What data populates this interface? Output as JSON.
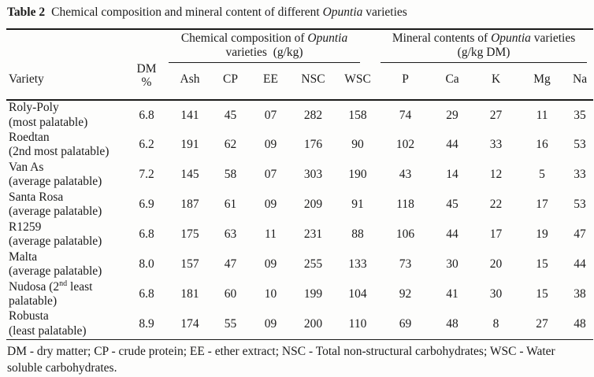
{
  "title": {
    "label": "Table 2",
    "pre": "Chemical composition and mineral content of different ",
    "italic": "Opuntia",
    "post": " varieties"
  },
  "table": {
    "variety_header": "Variety",
    "dm_header_line1": "DM",
    "dm_header_line2": "%",
    "group1": {
      "pre": "Chemical composition of ",
      "italic": "Opuntia",
      "post": "",
      "line2": "varieties  (g/kg)",
      "cols": [
        "Ash",
        "CP",
        "EE",
        "NSC",
        "WSC"
      ]
    },
    "group2": {
      "pre": "Mineral contents of ",
      "italic": "Opuntia",
      "post": " varieties",
      "line2": "(g/kg DM)",
      "cols": [
        "P",
        "Ca",
        "K",
        "Mg",
        "Na"
      ]
    },
    "rows": [
      {
        "l1_pre": "Roly-Poly",
        "l1_sup": "",
        "l1_post": "",
        "l2": "(most palatable)",
        "values": [
          "6.8",
          "141",
          "45",
          "07",
          "282",
          "158",
          "74",
          "29",
          "27",
          "11",
          "35"
        ]
      },
      {
        "l1_pre": "Roedtan",
        "l1_sup": "",
        "l1_post": "",
        "l2": "(2nd most palatable)",
        "values": [
          "6.2",
          "191",
          "62",
          "09",
          "176",
          "90",
          "102",
          "44",
          "33",
          "16",
          "53"
        ]
      },
      {
        "l1_pre": "Van As",
        "l1_sup": "",
        "l1_post": "",
        "l2": "(average palatable)",
        "values": [
          "7.2",
          "145",
          "58",
          "07",
          "303",
          "190",
          "43",
          "14",
          "12",
          "5",
          "33"
        ]
      },
      {
        "l1_pre": "Santa Rosa",
        "l1_sup": "",
        "l1_post": "",
        "l2": "(average palatable)",
        "values": [
          "6.9",
          "187",
          "61",
          "09",
          "209",
          "91",
          "118",
          "45",
          "22",
          "17",
          "53"
        ]
      },
      {
        "l1_pre": "R1259",
        "l1_sup": "",
        "l1_post": "",
        "l2": "(average palatable)",
        "values": [
          "6.8",
          "175",
          "63",
          "11",
          "231",
          "88",
          "106",
          "44",
          "17",
          "19",
          "47"
        ]
      },
      {
        "l1_pre": "Malta",
        "l1_sup": "",
        "l1_post": "",
        "l2": "(average palatable)",
        "values": [
          "8.0",
          "157",
          "47",
          "09",
          "255",
          "133",
          "73",
          "30",
          "20",
          "15",
          "44"
        ]
      },
      {
        "l1_pre": "Nudosa (2",
        "l1_sup": "nd",
        "l1_post": " least",
        "l2": "palatable)",
        "values": [
          "6.8",
          "181",
          "60",
          "10",
          "199",
          "104",
          "92",
          "41",
          "30",
          "15",
          "38"
        ]
      },
      {
        "l1_pre": "Robusta",
        "l1_sup": "",
        "l1_post": "",
        "l2": "(least palatable)",
        "values": [
          "8.9",
          "174",
          "55",
          "09",
          "200",
          "110",
          "69",
          "48",
          "8",
          "27",
          "48"
        ]
      }
    ]
  },
  "footnote": {
    "line1": "DM - dry matter; CP - crude protein; EE - ether extract; NSC - Total non-structural carbohydrates; WSC - Water",
    "line2": "soluble carbohydrates."
  },
  "colors": {
    "background": "#fdfdfc",
    "text": "#1c1c1c",
    "rule": "#1a1a1a"
  }
}
